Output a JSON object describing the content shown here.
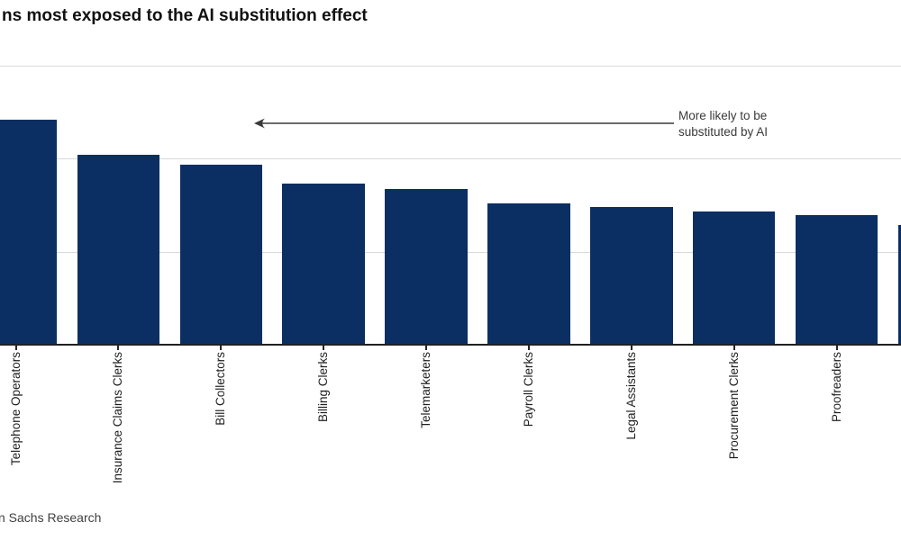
{
  "title": "ns most exposed to the AI substitution effect",
  "source": "n Sachs Research",
  "annotation": {
    "line1": "More likely to be",
    "line2": "substituted by AI"
  },
  "colors": {
    "bar": "#0b2f63",
    "gridline": "#d9d9d9",
    "axis": "#202020",
    "title_text": "#111111",
    "axis_label_text": "#1f1f1f",
    "annotation_text": "#3a3a3a",
    "source_text": "#3f3f3f",
    "background": "#ffffff"
  },
  "chart_data": {
    "type": "bar",
    "title": "ns most exposed to the AI substitution effect",
    "xlabel": "",
    "ylabel": "",
    "categories": [
      "Telephone Operators",
      "Insurance Claims Clerks",
      "Bill Collectors",
      "Billing Clerks",
      "Telemarketers",
      "Payroll Clerks",
      "Legal Assistants",
      "Procurement Clerks",
      "Proofreaders",
      ""
    ],
    "values": [
      60.4,
      51.0,
      48.4,
      43.4,
      41.9,
      37.9,
      37.1,
      35.8,
      34.8,
      32.2
    ],
    "ylim": [
      0,
      75
    ],
    "gridlines_y": [
      25,
      50,
      75
    ],
    "grid": "horizontal",
    "legend": "none",
    "annotation": "More likely to be substituted by AI",
    "bar_color": "#0b2f63"
  }
}
